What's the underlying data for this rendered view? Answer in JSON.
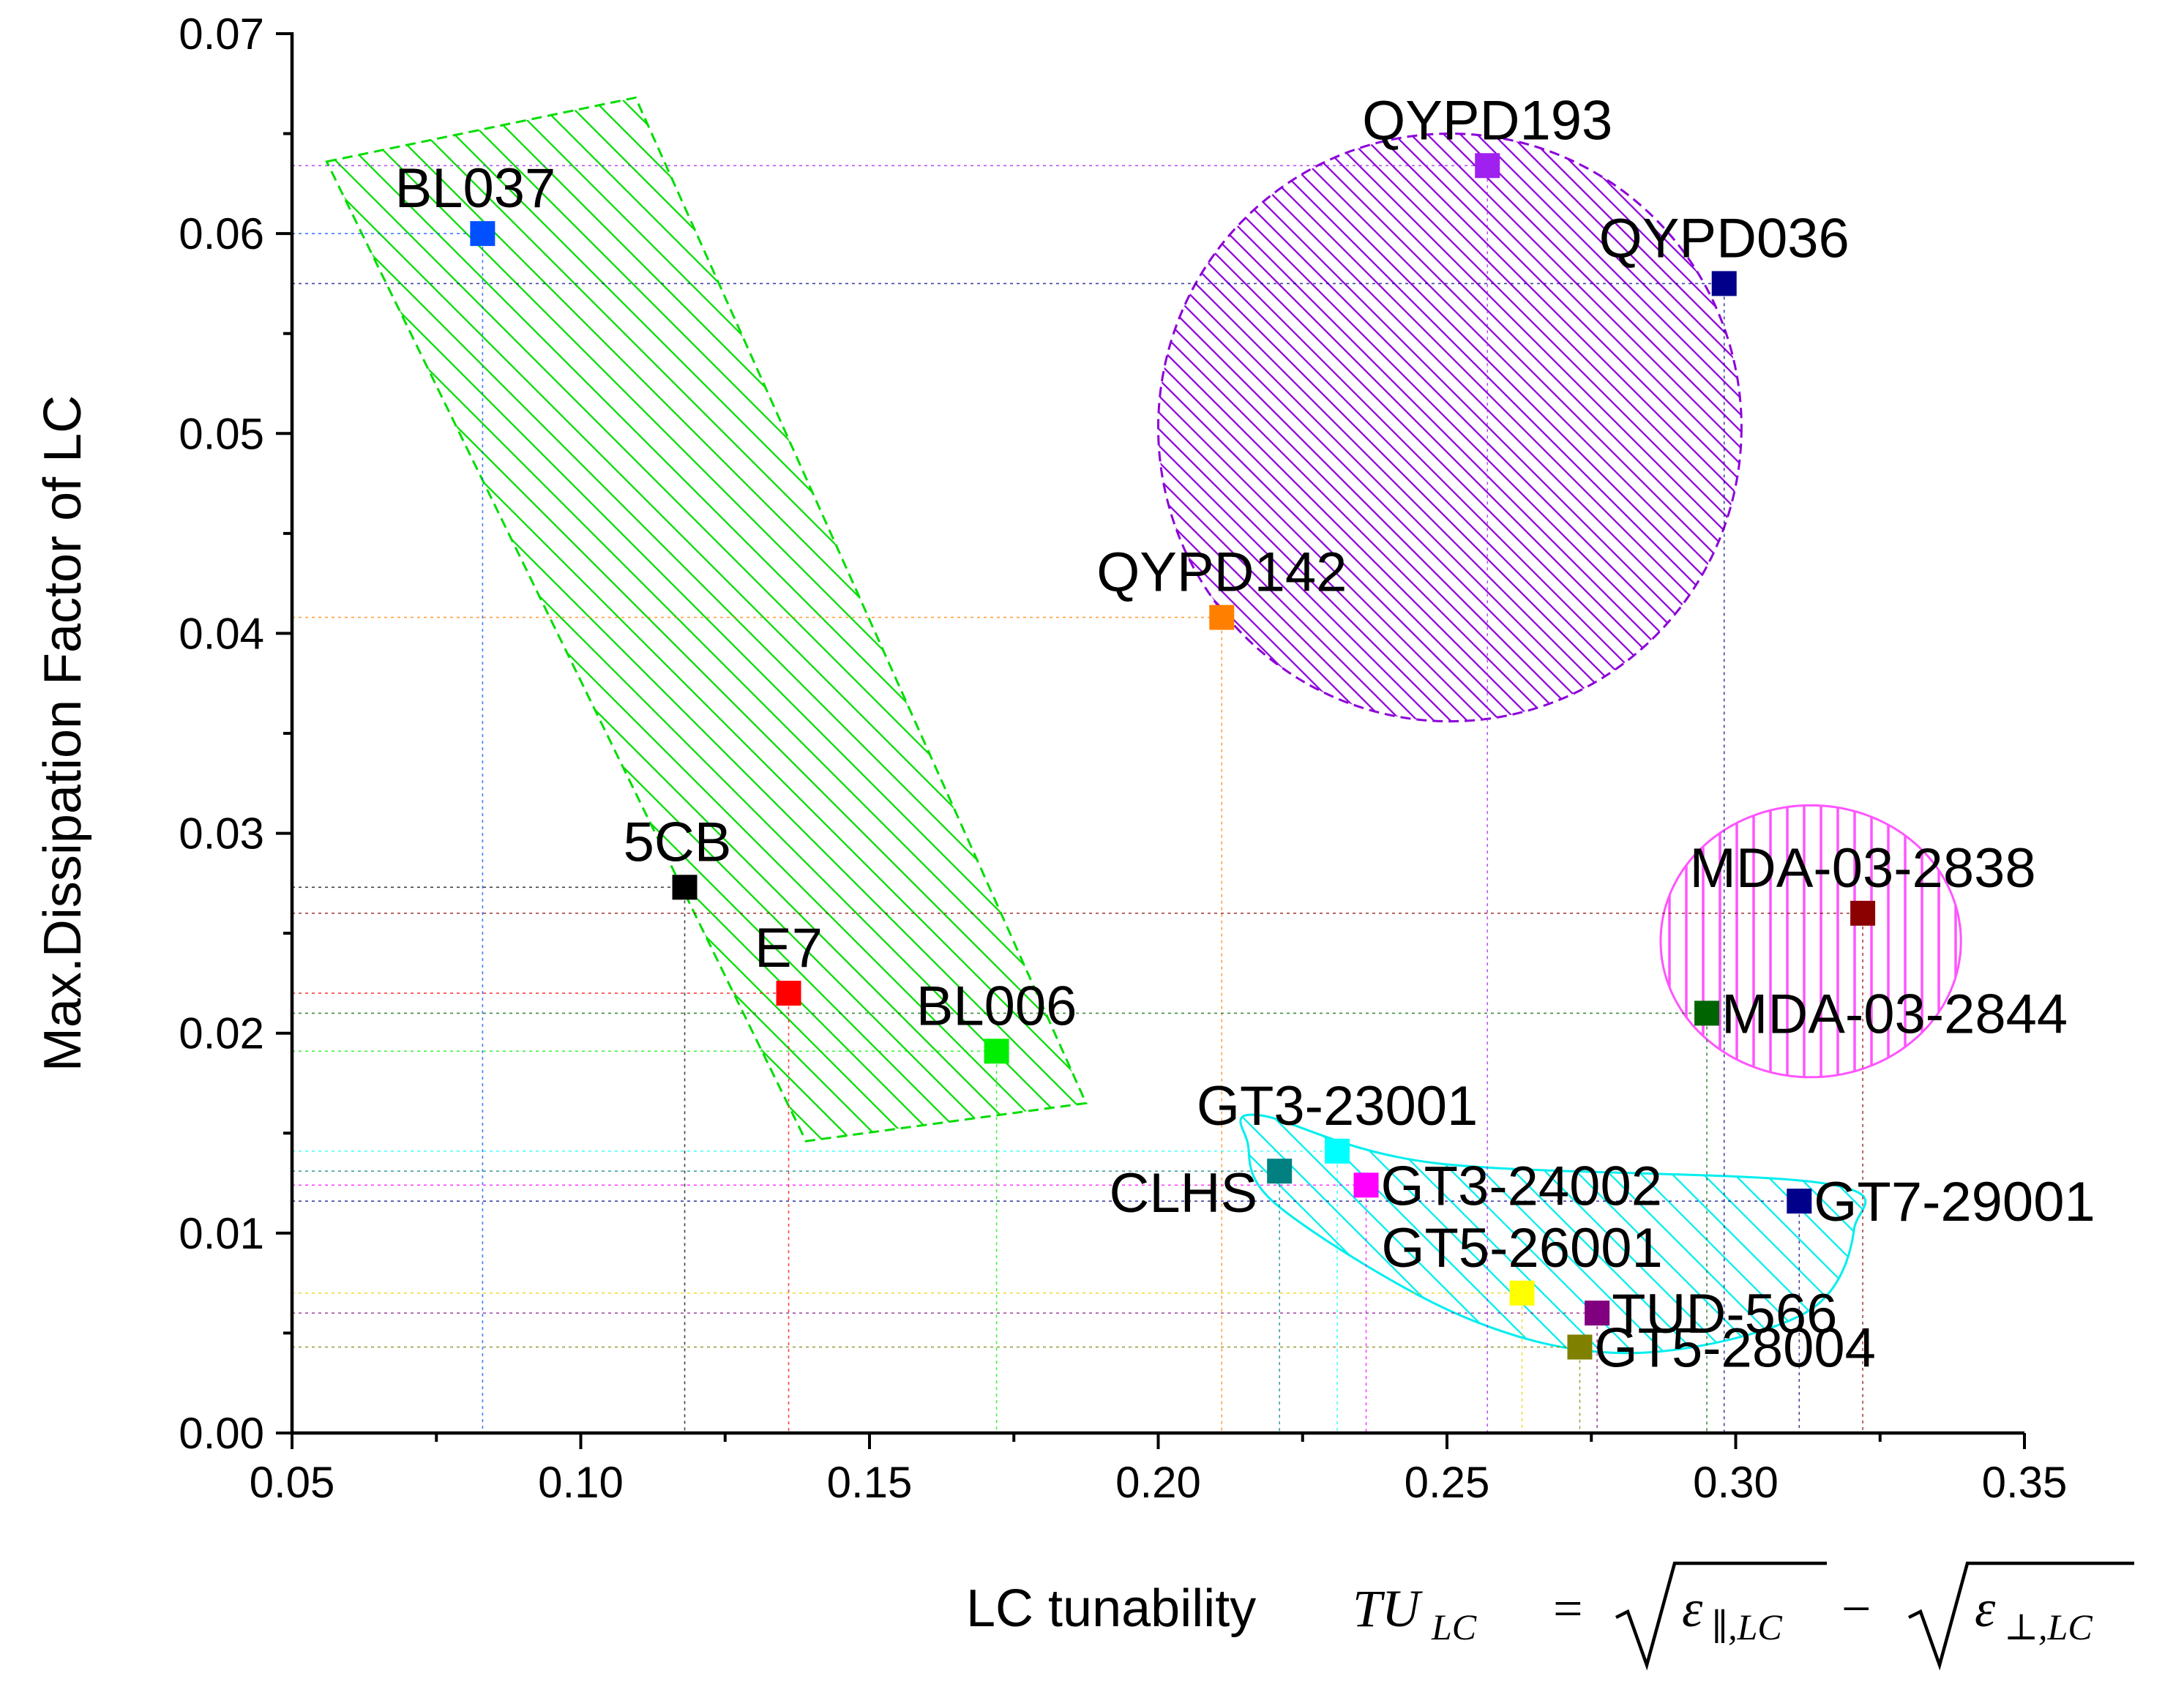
{
  "chart_data": {
    "type": "scatter",
    "title": "",
    "xlabel": "LC tunability",
    "xlabel_math": {
      "lhs_main": "TU",
      "lhs_sub": "LC",
      "equals": "=",
      "minus": "−",
      "radical": "√",
      "eps": "ε",
      "sub_parallel": "∥,LC",
      "sub_perp": "⊥,LC"
    },
    "ylabel": "Max.Dissipation Factor of LC",
    "xlim": [
      0.05,
      0.35
    ],
    "ylim": [
      0.0,
      0.07
    ],
    "xticks": [
      0.05,
      0.1,
      0.15,
      0.2,
      0.25,
      0.3,
      0.35
    ],
    "xtick_labels": [
      "0.05",
      "0.10",
      "0.15",
      "0.20",
      "0.25",
      "0.30",
      "0.35"
    ],
    "yticks": [
      0.0,
      0.01,
      0.02,
      0.03,
      0.04,
      0.05,
      0.06,
      0.07
    ],
    "ytick_labels": [
      "0.00",
      "0.01",
      "0.02",
      "0.03",
      "0.04",
      "0.05",
      "0.06",
      "0.07"
    ],
    "points": [
      {
        "name": "BL037",
        "x": 0.083,
        "y": 0.06,
        "color": "#0050ff",
        "label_anchor": "above-left"
      },
      {
        "name": "5CB",
        "x": 0.118,
        "y": 0.0273,
        "color": "#000000",
        "label_anchor": "above-left"
      },
      {
        "name": "E7",
        "x": 0.136,
        "y": 0.022,
        "color": "#ff0000",
        "label_anchor": "above"
      },
      {
        "name": "BL006",
        "x": 0.172,
        "y": 0.0191,
        "color": "#00ee00",
        "label_anchor": "above"
      },
      {
        "name": "QYPD142",
        "x": 0.211,
        "y": 0.0408,
        "color": "#ff8000",
        "label_anchor": "above"
      },
      {
        "name": "QYPD193",
        "x": 0.257,
        "y": 0.0634,
        "color": "#a020f0",
        "label_anchor": "above"
      },
      {
        "name": "QYPD036",
        "x": 0.298,
        "y": 0.0575,
        "color": "#00008b",
        "label_anchor": "above"
      },
      {
        "name": "MDA-03-2838",
        "x": 0.322,
        "y": 0.026,
        "color": "#8b0000",
        "label_anchor": "above"
      },
      {
        "name": "MDA-03-2844",
        "x": 0.295,
        "y": 0.021,
        "color": "#006400",
        "label_anchor": "right"
      },
      {
        "name": "GT3-23001",
        "x": 0.231,
        "y": 0.0141,
        "color": "#00ffff",
        "label_anchor": "above"
      },
      {
        "name": "CLHS",
        "x": 0.221,
        "y": 0.0131,
        "color": "#008080",
        "label_anchor": "left"
      },
      {
        "name": "GT3-24002",
        "x": 0.236,
        "y": 0.0124,
        "color": "#ff00ff",
        "label_anchor": "right"
      },
      {
        "name": "GT7-29001",
        "x": 0.311,
        "y": 0.0116,
        "color": "#00008b",
        "label_anchor": "right"
      },
      {
        "name": "GT5-26001",
        "x": 0.263,
        "y": 0.007,
        "color": "#ffff00",
        "label_anchor": "above"
      },
      {
        "name": "TUD-566",
        "x": 0.276,
        "y": 0.006,
        "color": "#800080",
        "label_anchor": "right"
      },
      {
        "name": "GT5-28004",
        "x": 0.273,
        "y": 0.0043,
        "color": "#808000",
        "label_anchor": "right"
      }
    ],
    "regions": [
      {
        "name": "green-polygon",
        "shape": "polygon",
        "color": "#00dd00",
        "hatch": "diagonal",
        "vertices": [
          [
            0.056,
            0.0636
          ],
          [
            0.1095,
            0.0668
          ],
          [
            0.1875,
            0.0165
          ],
          [
            0.139,
            0.0146
          ]
        ]
      },
      {
        "name": "purple-circle",
        "shape": "ellipse",
        "color": "#8c00d9",
        "hatch": "diagonal-dense",
        "center": [
          0.2505,
          0.0503
        ],
        "radius_x": 0.0505,
        "radius_y": 0.0147
      },
      {
        "name": "pink-ellipse",
        "shape": "ellipse",
        "color": "#ff55ff",
        "hatch": "vertical",
        "center": [
          0.313,
          0.0246
        ],
        "radius_x": 0.026,
        "radius_y": 0.0068
      },
      {
        "name": "cyan-blob",
        "shape": "blob",
        "color": "#00eeee",
        "hatch": "diagonal",
        "vertices": [
          [
            0.2175,
            0.0159
          ],
          [
            0.248,
            0.0135
          ],
          [
            0.315,
            0.0125
          ],
          [
            0.3205,
            0.0102
          ],
          [
            0.312,
            0.006
          ],
          [
            0.282,
            0.004
          ],
          [
            0.253,
            0.0058
          ],
          [
            0.221,
            0.0113
          ],
          [
            0.2155,
            0.0145
          ]
        ]
      }
    ]
  }
}
